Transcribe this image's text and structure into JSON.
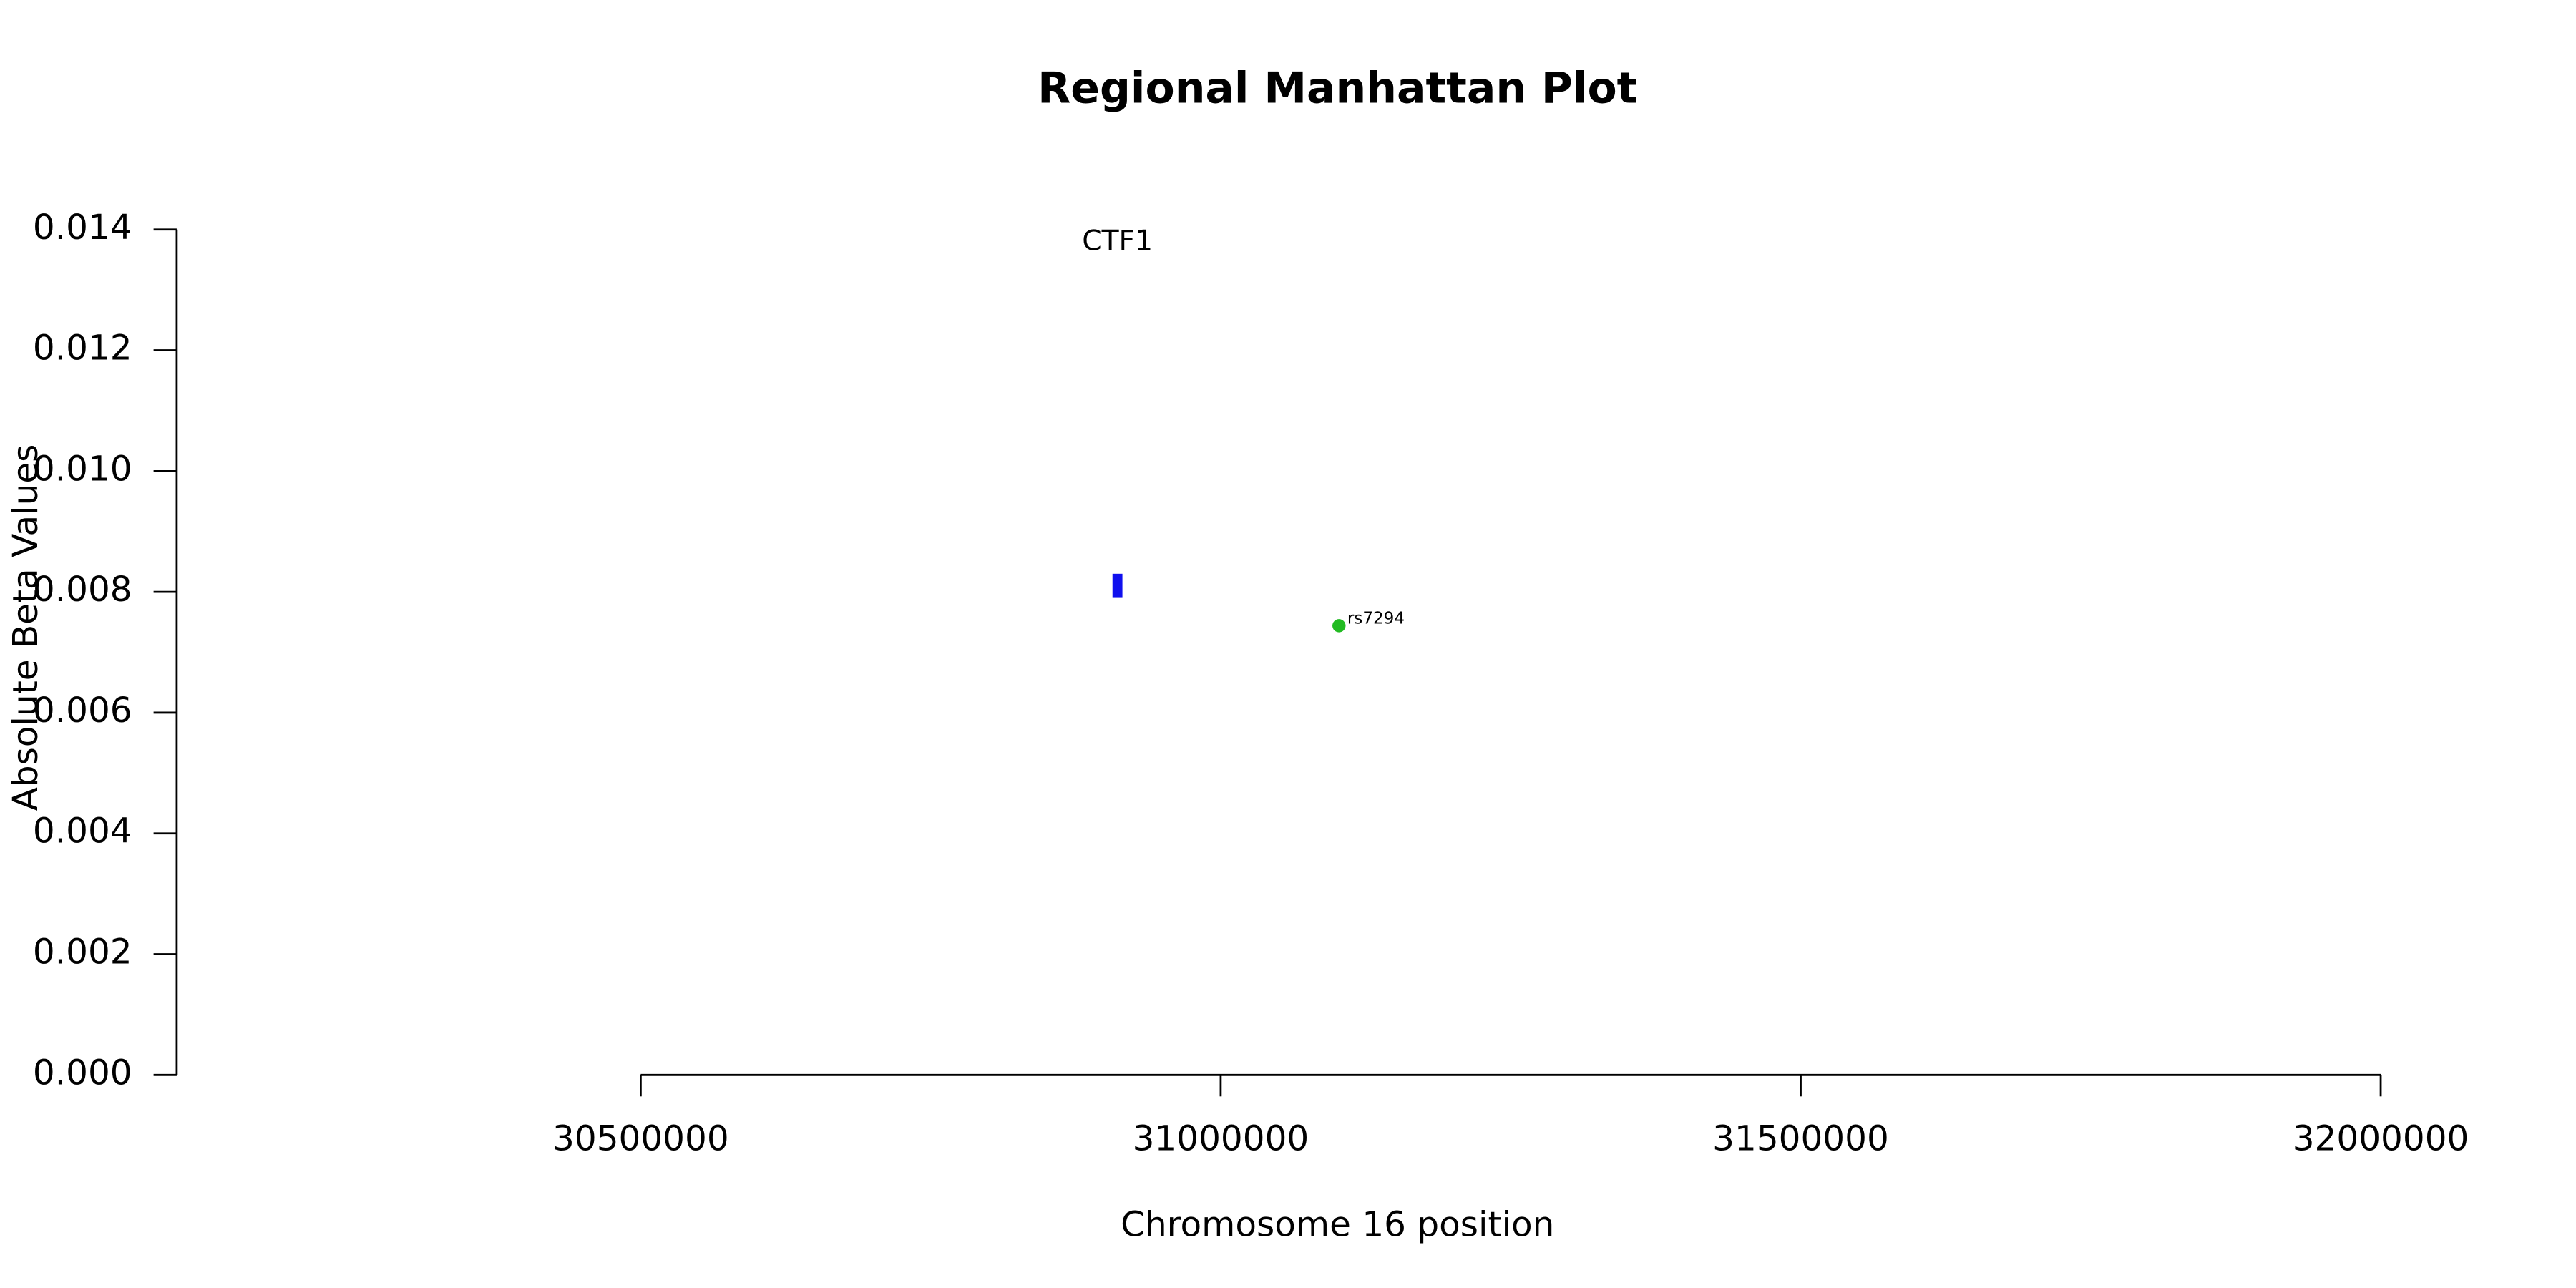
{
  "chart_data": {
    "type": "scatter",
    "title": "Regional Manhattan Plot",
    "xlabel": "Chromosome 16 position",
    "ylabel": "Absolute Beta Values",
    "xlim": [
      30100000,
      32110000
    ],
    "ylim": [
      0,
      0.014
    ],
    "xticks": [
      30500000,
      31000000,
      31500000,
      32000000
    ],
    "yticks": [
      {
        "value": 0,
        "label": "0.000"
      },
      0.002,
      0.004,
      0.006,
      0.008,
      {
        "value": 0.01,
        "label": "0.010"
      },
      0.012,
      0.014
    ],
    "series": [
      {
        "color": "#22bb22",
        "x": [
          31102000
        ],
        "values": [
          0.00744
        ],
        "point_labels": [
          "rs7294"
        ]
      }
    ],
    "genes": [
      {
        "label": "CTF1",
        "color": "#1010ee",
        "x": 30911000,
        "ymin": 0.0079,
        "ymax": 0.0083
      }
    ]
  }
}
